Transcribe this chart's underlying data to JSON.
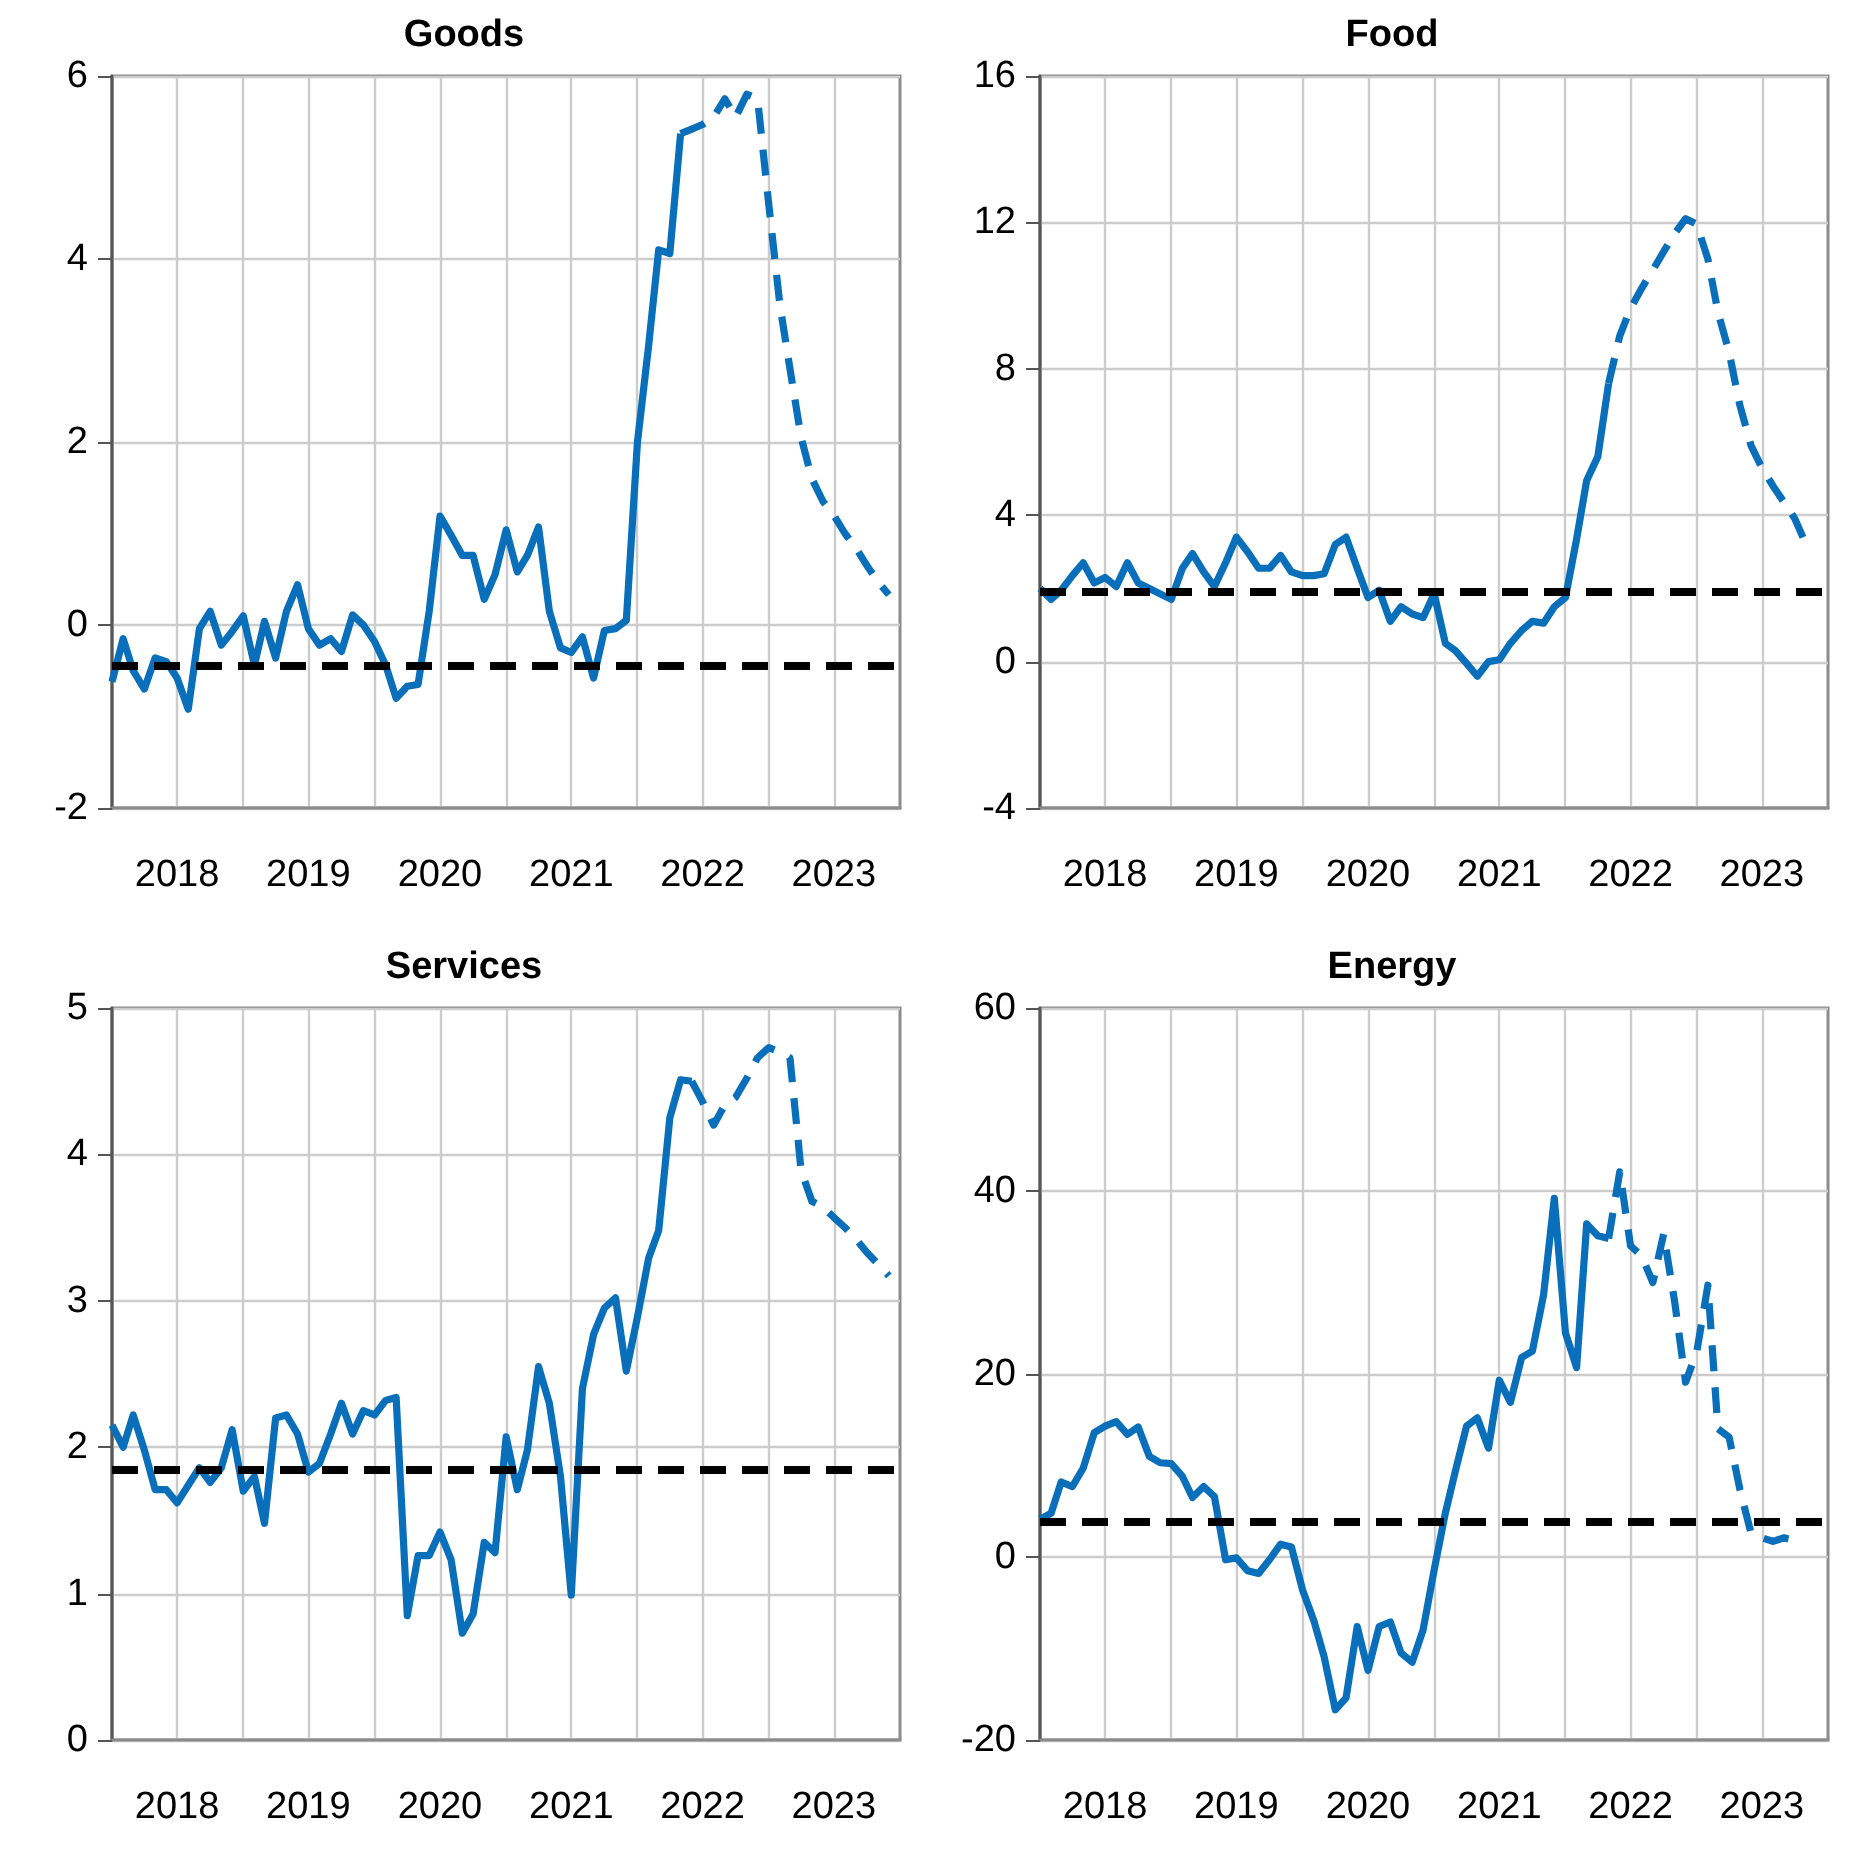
{
  "chart_data": [
    {
      "type": "line",
      "title": "Goods",
      "x": [
        "2018-01",
        "2018-02",
        "2018-03",
        "2018-04",
        "2018-05",
        "2018-06",
        "2018-07",
        "2018-08",
        "2018-09",
        "2018-10",
        "2018-11",
        "2018-12",
        "2019-01",
        "2019-02",
        "2019-03",
        "2019-04",
        "2019-05",
        "2019-06",
        "2019-07",
        "2019-08",
        "2019-09",
        "2019-10",
        "2019-11",
        "2019-12",
        "2020-01",
        "2020-02",
        "2020-03",
        "2020-04",
        "2020-05",
        "2020-06",
        "2020-07",
        "2020-08",
        "2020-09",
        "2020-10",
        "2020-11",
        "2020-12",
        "2021-01",
        "2021-02",
        "2021-03",
        "2021-04",
        "2021-05",
        "2021-06",
        "2021-07",
        "2021-08",
        "2021-09",
        "2021-10",
        "2021-11",
        "2021-12",
        "2022-01",
        "2022-02",
        "2022-03",
        "2022-04",
        "2022-05",
        "2022-06",
        "2022-07",
        "2022-08",
        "2022-09",
        "2022-10",
        "2022-11",
        "2022-12",
        "2023-01",
        "2023-02",
        "2023-03",
        "2023-04",
        "2023-05",
        "2023-06",
        "2023-07",
        "2023-08",
        "2023-09",
        "2023-10",
        "2023-11",
        "2023-12"
      ],
      "series": [
        {
          "color": "#0a6fba",
          "line_style": "solid",
          "values": [
            -0.62,
            -0.15,
            -0.5,
            -0.7,
            -0.36,
            -0.4,
            -0.58,
            -0.92,
            -0.04,
            0.15,
            -0.22,
            -0.07,
            0.1,
            -0.44,
            0.04,
            -0.36,
            0.15,
            0.44,
            -0.04,
            -0.22,
            -0.15,
            -0.29,
            0.11,
            0,
            -0.18,
            -0.44,
            -0.8,
            -0.67,
            -0.65,
            0.15,
            1.19,
            0.98,
            0.76,
            0.76,
            0.28,
            0.55,
            1.04,
            0.58,
            0.76,
            1.07,
            0.15,
            -0.25,
            -0.3,
            -0.13,
            -0.58,
            -0.06,
            -0.04,
            0.05,
            2.0,
            3.05,
            4.1,
            4.06,
            5.37,
            null,
            null,
            null,
            null,
            null,
            null,
            null,
            null,
            null,
            null,
            null,
            null,
            null,
            null,
            null,
            null,
            null,
            null,
            null
          ]
        },
        {
          "color": "#0a6fba",
          "line_style": "dashed",
          "values": [
            null,
            null,
            null,
            null,
            null,
            null,
            null,
            null,
            null,
            null,
            null,
            null,
            null,
            null,
            null,
            null,
            null,
            null,
            null,
            null,
            null,
            null,
            null,
            null,
            null,
            null,
            null,
            null,
            null,
            null,
            null,
            null,
            null,
            null,
            null,
            null,
            null,
            null,
            null,
            null,
            null,
            null,
            null,
            null,
            null,
            null,
            null,
            null,
            null,
            null,
            null,
            null,
            5.37,
            5.42,
            5.47,
            5.55,
            5.75,
            5.55,
            5.8,
            5.75,
            4.6,
            3.5,
            2.8,
            2.05,
            1.6,
            1.35,
            1.2,
            1.0,
            0.84,
            0.65,
            0.47,
            0.33
          ]
        }
      ],
      "ref_lines": [
        {
          "axis": "y",
          "value": -0.44,
          "color": "#000000",
          "line_style": "dashed"
        }
      ],
      "xlim": [
        "2018-01",
        "2024-01"
      ],
      "xticks": [
        {
          "value": "2018-07",
          "label": "2018"
        },
        {
          "value": "2019-07",
          "label": "2019"
        },
        {
          "value": "2020-07",
          "label": "2020"
        },
        {
          "value": "2021-07",
          "label": "2021"
        },
        {
          "value": "2022-07",
          "label": "2022"
        },
        {
          "value": "2023-07",
          "label": "2023"
        },
        {
          "value": "2019-01",
          "label": null
        },
        {
          "value": "2020-01",
          "label": null
        },
        {
          "value": "2021-01",
          "label": null
        },
        {
          "value": "2022-01",
          "label": null
        },
        {
          "value": "2023-01",
          "label": null
        }
      ],
      "ylim": [
        -2,
        6
      ],
      "yticks": [
        -2,
        0,
        2,
        4,
        6
      ],
      "grid": true,
      "marker": "none"
    },
    {
      "type": "line",
      "title": "Food",
      "x": [
        "2018-01",
        "2018-02",
        "2018-03",
        "2018-04",
        "2018-05",
        "2018-06",
        "2018-07",
        "2018-08",
        "2018-09",
        "2018-10",
        "2018-11",
        "2018-12",
        "2019-01",
        "2019-02",
        "2019-03",
        "2019-04",
        "2019-05",
        "2019-06",
        "2019-07",
        "2019-08",
        "2019-09",
        "2019-10",
        "2019-11",
        "2019-12",
        "2020-01",
        "2020-02",
        "2020-03",
        "2020-04",
        "2020-05",
        "2020-06",
        "2020-07",
        "2020-08",
        "2020-09",
        "2020-10",
        "2020-11",
        "2020-12",
        "2021-01",
        "2021-02",
        "2021-03",
        "2021-04",
        "2021-05",
        "2021-06",
        "2021-07",
        "2021-08",
        "2021-09",
        "2021-10",
        "2021-11",
        "2021-12",
        "2022-01",
        "2022-02",
        "2022-03",
        "2022-04",
        "2022-05",
        "2022-06",
        "2022-07",
        "2022-08",
        "2022-09",
        "2022-10",
        "2022-11",
        "2022-12",
        "2023-01",
        "2023-02",
        "2023-03",
        "2023-04",
        "2023-05",
        "2023-06",
        "2023-07",
        "2023-08",
        "2023-09",
        "2023-10",
        "2023-11"
      ],
      "series": [
        {
          "color": "#0a6fba",
          "line_style": "solid",
          "values": [
            2.0,
            1.7,
            1.95,
            2.35,
            2.7,
            2.15,
            2.3,
            2.05,
            2.7,
            2.15,
            2.0,
            1.85,
            1.7,
            2.55,
            2.95,
            2.45,
            2.05,
            2.7,
            3.4,
            3.0,
            2.55,
            2.55,
            2.9,
            2.45,
            2.35,
            2.35,
            2.4,
            3.2,
            3.4,
            2.55,
            1.75,
            1.95,
            1.1,
            1.5,
            1.3,
            1.2,
            1.85,
            0.5,
            0.3,
            -0.05,
            -0.4,
            0.0,
            0.05,
            0.5,
            0.85,
            1.1,
            1.05,
            1.5,
            1.75,
            3.35,
            4.95,
            5.6,
            7.6,
            null,
            null,
            null,
            null,
            null,
            null,
            null,
            null,
            null,
            null,
            null,
            null,
            null,
            null,
            null,
            null,
            null,
            null
          ]
        },
        {
          "color": "#0a6fba",
          "line_style": "dashed",
          "values": [
            null,
            null,
            null,
            null,
            null,
            null,
            null,
            null,
            null,
            null,
            null,
            null,
            null,
            null,
            null,
            null,
            null,
            null,
            null,
            null,
            null,
            null,
            null,
            null,
            null,
            null,
            null,
            null,
            null,
            null,
            null,
            null,
            null,
            null,
            null,
            null,
            null,
            null,
            null,
            null,
            null,
            null,
            null,
            null,
            null,
            null,
            null,
            null,
            null,
            null,
            null,
            null,
            7.6,
            8.9,
            9.65,
            10.2,
            10.7,
            11.2,
            11.7,
            12.1,
            11.95,
            11.0,
            9.55,
            8.45,
            7.0,
            5.9,
            5.3,
            4.8,
            4.35,
            3.9,
            3.2
          ]
        }
      ],
      "ref_lines": [
        {
          "axis": "y",
          "value": 1.9,
          "color": "#000000",
          "line_style": "dashed"
        }
      ],
      "xlim": [
        "2018-01",
        "2024-01"
      ],
      "xticks": [
        {
          "value": "2018-07",
          "label": "2018"
        },
        {
          "value": "2019-07",
          "label": "2019"
        },
        {
          "value": "2020-07",
          "label": "2020"
        },
        {
          "value": "2021-07",
          "label": "2021"
        },
        {
          "value": "2022-07",
          "label": "2022"
        },
        {
          "value": "2023-07",
          "label": "2023"
        },
        {
          "value": "2019-01",
          "label": null
        },
        {
          "value": "2020-01",
          "label": null
        },
        {
          "value": "2021-01",
          "label": null
        },
        {
          "value": "2022-01",
          "label": null
        },
        {
          "value": "2023-01",
          "label": null
        }
      ],
      "ylim": [
        -4,
        16
      ],
      "yticks": [
        -4,
        0,
        4,
        8,
        12,
        16
      ],
      "grid": true,
      "marker": "none"
    },
    {
      "type": "line",
      "title": "Services",
      "x": [
        "2018-01",
        "2018-02",
        "2018-03",
        "2018-04",
        "2018-05",
        "2018-06",
        "2018-07",
        "2018-08",
        "2018-09",
        "2018-10",
        "2018-11",
        "2018-12",
        "2019-01",
        "2019-02",
        "2019-03",
        "2019-04",
        "2019-05",
        "2019-06",
        "2019-07",
        "2019-08",
        "2019-09",
        "2019-10",
        "2019-11",
        "2019-12",
        "2020-01",
        "2020-02",
        "2020-03",
        "2020-04",
        "2020-05",
        "2020-06",
        "2020-07",
        "2020-08",
        "2020-09",
        "2020-10",
        "2020-11",
        "2020-12",
        "2021-01",
        "2021-02",
        "2021-03",
        "2021-04",
        "2021-05",
        "2021-06",
        "2021-07",
        "2021-08",
        "2021-09",
        "2021-10",
        "2021-11",
        "2021-12",
        "2022-01",
        "2022-02",
        "2022-03",
        "2022-04",
        "2022-05",
        "2022-06",
        "2022-07",
        "2022-08",
        "2022-09",
        "2022-10",
        "2022-11",
        "2022-12",
        "2023-01",
        "2023-02",
        "2023-03",
        "2023-04",
        "2023-05",
        "2023-06",
        "2023-07",
        "2023-08",
        "2023-09",
        "2023-10",
        "2023-11",
        "2023-12"
      ],
      "series": [
        {
          "color": "#0a6fba",
          "line_style": "solid",
          "values": [
            2.15,
            2.0,
            2.22,
            1.98,
            1.71,
            1.71,
            1.62,
            1.74,
            1.86,
            1.76,
            1.86,
            2.12,
            1.7,
            1.8,
            1.48,
            2.2,
            2.22,
            2.09,
            1.83,
            1.89,
            2.09,
            2.3,
            2.09,
            2.25,
            2.22,
            2.32,
            2.34,
            0.85,
            1.26,
            1.26,
            1.42,
            1.23,
            0.73,
            0.86,
            1.35,
            1.28,
            2.07,
            1.71,
            1.98,
            2.55,
            2.3,
            1.8,
            0.99,
            2.4,
            2.77,
            2.95,
            3.02,
            2.52,
            2.89,
            3.29,
            3.48,
            4.25,
            4.51,
            4.5,
            null,
            null,
            null,
            null,
            null,
            null,
            null,
            null,
            null,
            null,
            null,
            null,
            null,
            null,
            null,
            null,
            null,
            null
          ]
        },
        {
          "color": "#0a6fba",
          "line_style": "dashed",
          "values": [
            null,
            null,
            null,
            null,
            null,
            null,
            null,
            null,
            null,
            null,
            null,
            null,
            null,
            null,
            null,
            null,
            null,
            null,
            null,
            null,
            null,
            null,
            null,
            null,
            null,
            null,
            null,
            null,
            null,
            null,
            null,
            null,
            null,
            null,
            null,
            null,
            null,
            null,
            null,
            null,
            null,
            null,
            null,
            null,
            null,
            null,
            null,
            null,
            null,
            null,
            null,
            null,
            null,
            4.5,
            4.36,
            4.2,
            4.34,
            4.39,
            4.52,
            4.66,
            4.73,
            4.7,
            4.66,
            3.89,
            3.68,
            3.64,
            3.57,
            3.5,
            3.42,
            3.33,
            3.25,
            3.17
          ]
        }
      ],
      "ref_lines": [
        {
          "axis": "y",
          "value": 1.85,
          "color": "#000000",
          "line_style": "dashed"
        }
      ],
      "xlim": [
        "2018-01",
        "2024-01"
      ],
      "xticks": [
        {
          "value": "2018-07",
          "label": "2018"
        },
        {
          "value": "2019-07",
          "label": "2019"
        },
        {
          "value": "2020-07",
          "label": "2020"
        },
        {
          "value": "2021-07",
          "label": "2021"
        },
        {
          "value": "2022-07",
          "label": "2022"
        },
        {
          "value": "2023-07",
          "label": "2023"
        },
        {
          "value": "2019-01",
          "label": null
        },
        {
          "value": "2020-01",
          "label": null
        },
        {
          "value": "2021-01",
          "label": null
        },
        {
          "value": "2022-01",
          "label": null
        },
        {
          "value": "2023-01",
          "label": null
        }
      ],
      "ylim": [
        0,
        5
      ],
      "yticks": [
        0,
        1,
        2,
        3,
        4,
        5
      ],
      "grid": true,
      "marker": "none"
    },
    {
      "type": "line",
      "title": "Energy",
      "x": [
        "2018-01",
        "2018-02",
        "2018-03",
        "2018-04",
        "2018-05",
        "2018-06",
        "2018-07",
        "2018-08",
        "2018-09",
        "2018-10",
        "2018-11",
        "2018-12",
        "2019-01",
        "2019-02",
        "2019-03",
        "2019-04",
        "2019-05",
        "2019-06",
        "2019-07",
        "2019-08",
        "2019-09",
        "2019-10",
        "2019-11",
        "2019-12",
        "2020-01",
        "2020-02",
        "2020-03",
        "2020-04",
        "2020-05",
        "2020-06",
        "2020-07",
        "2020-08",
        "2020-09",
        "2020-10",
        "2020-11",
        "2020-12",
        "2021-01",
        "2021-02",
        "2021-03",
        "2021-04",
        "2021-05",
        "2021-06",
        "2021-07",
        "2021-08",
        "2021-09",
        "2021-10",
        "2021-11",
        "2021-12",
        "2022-01",
        "2022-02",
        "2022-03",
        "2022-04",
        "2022-05",
        "2022-06",
        "2022-07",
        "2022-08",
        "2022-09",
        "2022-10",
        "2022-11",
        "2022-12",
        "2023-01",
        "2023-02",
        "2023-03",
        "2023-04",
        "2023-05",
        "2023-06",
        "2023-07",
        "2023-08",
        "2023-09",
        "2023-10"
      ],
      "series": [
        {
          "color": "#0a6fba",
          "line_style": "solid",
          "values": [
            4.1,
            4.8,
            8.2,
            7.7,
            9.7,
            13.6,
            14.3,
            14.8,
            13.4,
            14.2,
            11.0,
            10.3,
            10.2,
            8.8,
            6.5,
            7.7,
            6.6,
            -0.3,
            -0.1,
            -1.5,
            -1.8,
            -0.3,
            1.4,
            1.1,
            -3.6,
            -6.9,
            -10.9,
            -16.7,
            -15.4,
            -7.6,
            -12.4,
            -7.6,
            -7.1,
            -10.5,
            -11.5,
            -8.0,
            -1.4,
            4.8,
            9.4,
            14.3,
            15.2,
            11.9,
            19.3,
            16.9,
            21.8,
            22.5,
            28.6,
            39.2,
            24.5,
            20.7,
            36.4,
            35.1,
            34.8,
            null,
            null,
            null,
            null,
            null,
            null,
            null,
            null,
            null,
            null,
            null,
            null,
            null,
            null,
            null,
            null,
            null
          ]
        },
        {
          "color": "#0a6fba",
          "line_style": "dashed",
          "values": [
            null,
            null,
            null,
            null,
            null,
            null,
            null,
            null,
            null,
            null,
            null,
            null,
            null,
            null,
            null,
            null,
            null,
            null,
            null,
            null,
            null,
            null,
            null,
            null,
            null,
            null,
            null,
            null,
            null,
            null,
            null,
            null,
            null,
            null,
            null,
            null,
            null,
            null,
            null,
            null,
            null,
            null,
            null,
            null,
            null,
            null,
            null,
            null,
            null,
            null,
            null,
            null,
            34.8,
            42.1,
            34.0,
            32.9,
            30.0,
            35.3,
            27.8,
            19.1,
            22.4,
            29.7,
            14.0,
            13.1,
            7.4,
            2.6,
            2.1,
            1.7,
            2.1,
            1.8
          ]
        }
      ],
      "ref_lines": [
        {
          "axis": "y",
          "value": 3.9,
          "color": "#000000",
          "line_style": "dashed"
        }
      ],
      "xlim": [
        "2018-01",
        "2024-01"
      ],
      "xticks": [
        {
          "value": "2018-07",
          "label": "2018"
        },
        {
          "value": "2019-07",
          "label": "2019"
        },
        {
          "value": "2020-07",
          "label": "2020"
        },
        {
          "value": "2021-07",
          "label": "2021"
        },
        {
          "value": "2022-07",
          "label": "2022"
        },
        {
          "value": "2023-07",
          "label": "2023"
        },
        {
          "value": "2019-01",
          "label": null
        },
        {
          "value": "2020-01",
          "label": null
        },
        {
          "value": "2021-01",
          "label": null
        },
        {
          "value": "2022-01",
          "label": null
        },
        {
          "value": "2023-01",
          "label": null
        }
      ],
      "ylim": [
        -20,
        60
      ],
      "yticks": [
        -20,
        0,
        20,
        40,
        60
      ],
      "grid": true,
      "marker": "none"
    }
  ]
}
